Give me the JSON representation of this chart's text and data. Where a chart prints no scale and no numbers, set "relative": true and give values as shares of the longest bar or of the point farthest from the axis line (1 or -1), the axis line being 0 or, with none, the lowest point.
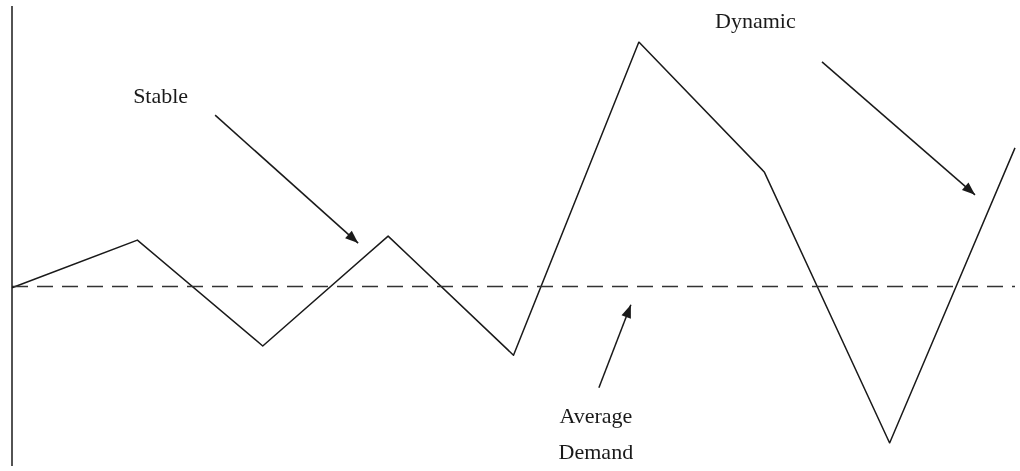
{
  "chart_data": {
    "type": "line",
    "relative": true,
    "categories": [
      null,
      null,
      null,
      null,
      null,
      null,
      null,
      null,
      null
    ],
    "series": [
      {
        "color": "#1a1a1a",
        "values": [
          0.387,
          0.506,
          0.242,
          0.516,
          0.219,
          1,
          0.676,
          0,
          0.736
        ]
      }
    ],
    "ref_lines": [
      {
        "axis": "y",
        "value": 0.387,
        "label": "Average Demand",
        "color": "#333333",
        "line_style": "dashed"
      }
    ],
    "annotations": [
      "Stable",
      "Dynamic"
    ],
    "marker": "none",
    "grid": false
  }
}
